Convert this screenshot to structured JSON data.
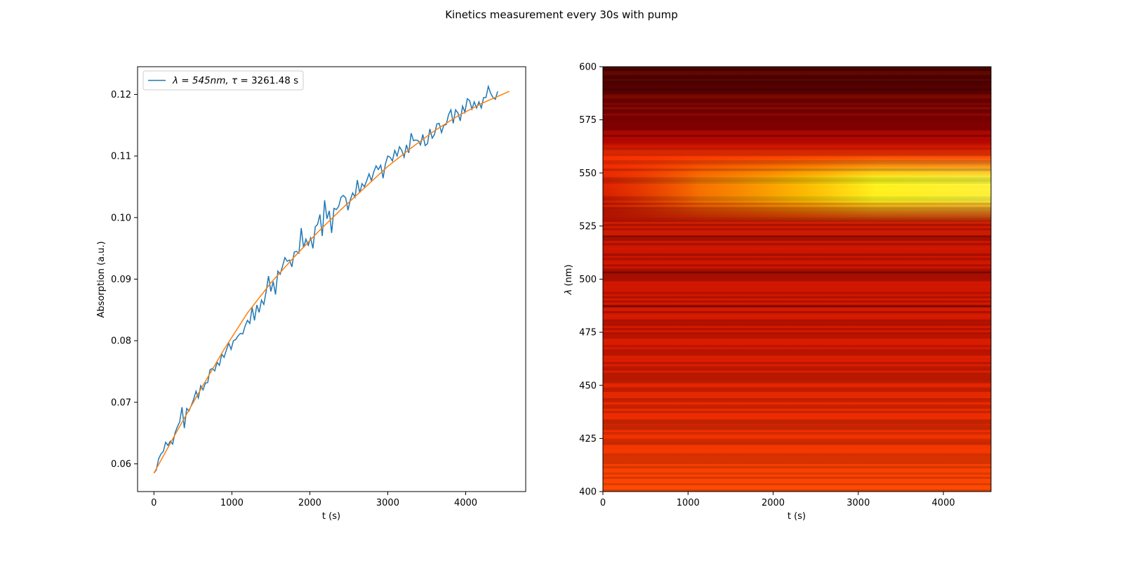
{
  "figure": {
    "suptitle": "Kinetics measurement every 30s with pump"
  },
  "chart_data": [
    {
      "type": "line",
      "panel": "kinetics-trace",
      "xlabel": "t (s)",
      "ylabel": "Absorption (a.u.)",
      "xlim": [
        -210,
        4770
      ],
      "ylim": [
        0.0555,
        0.1245
      ],
      "xticks": [
        0,
        1000,
        2000,
        3000,
        4000
      ],
      "yticks": [
        0.06,
        0.07,
        0.08,
        0.09,
        0.1,
        0.11,
        0.12
      ],
      "ytick_labels": [
        "0.06",
        "0.07",
        "0.08",
        "0.09",
        "0.10",
        "0.11",
        "0.12"
      ],
      "grid": false,
      "legend": {
        "placement": "top-left",
        "entry_prefix": "λ = 545nm, τ",
        "entry_value": " = 3261.48 s"
      },
      "series": [
        {
          "role": "measured",
          "color": "#1f77b4",
          "t_start": 0,
          "t_step": 30,
          "values": [
            0.0585,
            0.059,
            0.0608,
            0.0616,
            0.062,
            0.0635,
            0.063,
            0.0637,
            0.0632,
            0.065,
            0.066,
            0.0668,
            0.0692,
            0.0658,
            0.069,
            0.0686,
            0.0695,
            0.0705,
            0.0718,
            0.0707,
            0.0727,
            0.072,
            0.0731,
            0.0732,
            0.0753,
            0.0755,
            0.0751,
            0.0765,
            0.076,
            0.0778,
            0.0773,
            0.0785,
            0.0796,
            0.0786,
            0.08,
            0.0802,
            0.0808,
            0.0812,
            0.0811,
            0.0824,
            0.0833,
            0.0828,
            0.0854,
            0.0833,
            0.0858,
            0.0846,
            0.0866,
            0.0859,
            0.088,
            0.0905,
            0.088,
            0.0896,
            0.0875,
            0.0913,
            0.0908,
            0.0921,
            0.0935,
            0.0929,
            0.0931,
            0.092,
            0.0944,
            0.0945,
            0.0942,
            0.0983,
            0.0951,
            0.0965,
            0.0955,
            0.0967,
            0.095,
            0.0985,
            0.0989,
            0.1005,
            0.097,
            0.1028,
            0.0998,
            0.1011,
            0.0975,
            0.1015,
            0.1013,
            0.1018,
            0.1033,
            0.1036,
            0.1032,
            0.1012,
            0.1029,
            0.104,
            0.1033,
            0.1061,
            0.104,
            0.1055,
            0.105,
            0.106,
            0.1071,
            0.106,
            0.1074,
            0.1084,
            0.1078,
            0.1085,
            0.1064,
            0.1087,
            0.11,
            0.1098,
            0.1092,
            0.1109,
            0.11,
            0.1115,
            0.1109,
            0.1098,
            0.1118,
            0.1105,
            0.1137,
            0.1125,
            0.1126,
            0.1125,
            0.1118,
            0.1135,
            0.1117,
            0.112,
            0.1144,
            0.1129,
            0.1135,
            0.1152,
            0.1153,
            0.1138,
            0.115,
            0.1151,
            0.1167,
            0.1175,
            0.1153,
            0.1175,
            0.117,
            0.1157,
            0.1181,
            0.1171,
            0.1193,
            0.119,
            0.1176,
            0.1188,
            0.1178,
            0.1188,
            0.1178,
            0.1195,
            0.1195,
            0.1213,
            0.1202,
            0.1195,
            0.1192,
            0.1205
          ]
        },
        {
          "role": "fit",
          "color": "#ff7f0e",
          "x": [
            0,
            300,
            600,
            900,
            1200,
            1500,
            1800,
            2100,
            2400,
            2700,
            3000,
            3300,
            3600,
            3900,
            4200,
            4560
          ],
          "values": [
            0.0585,
            0.0654,
            0.0721,
            0.0786,
            0.0845,
            0.0894,
            0.0936,
            0.0976,
            0.1013,
            0.1048,
            0.1083,
            0.1113,
            0.1141,
            0.1165,
            0.1185,
            0.1205
          ]
        }
      ]
    },
    {
      "type": "heatmap",
      "panel": "spectral-map",
      "xlabel": "t (s)",
      "ylabel_prefix": "λ",
      "ylabel_suffix": " (nm)",
      "xlim": [
        0,
        4560
      ],
      "ylim": [
        400,
        600
      ],
      "xticks": [
        0,
        1000,
        2000,
        3000,
        4000
      ],
      "yticks": [
        400,
        425,
        450,
        475,
        500,
        525,
        550,
        575,
        600
      ],
      "colormap": "hot",
      "grid": false,
      "features": {
        "bright_band_center_nm": 545,
        "bright_band_width_nm": 8,
        "bright_band_rise_time_s": 3261.48,
        "dark_rows_nm": [
          589,
          593,
          600,
          487,
          520,
          503
        ]
      }
    }
  ]
}
